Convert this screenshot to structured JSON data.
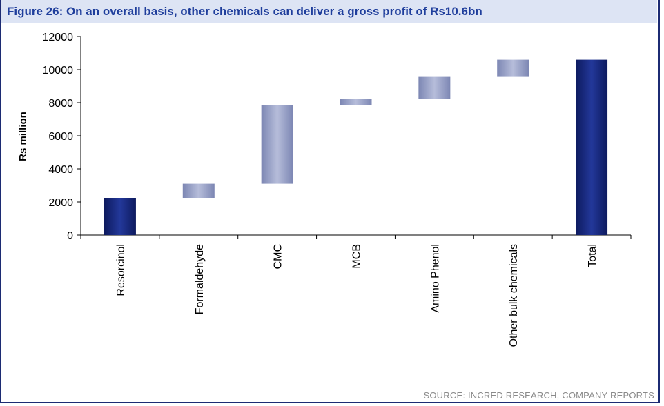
{
  "figure": {
    "title": "Figure 26: On an overall basis, other chemicals can deliver a gross profit of Rs10.6bn",
    "source": "SOURCE: INCRED RESEARCH, COMPANY REPORTS"
  },
  "chart_data": {
    "type": "bar",
    "subtype": "waterfall",
    "title": "",
    "xlabel": "",
    "ylabel": "Rs million",
    "ylim": [
      0,
      12000
    ],
    "yticks": [
      0,
      2000,
      4000,
      6000,
      8000,
      10000,
      12000
    ],
    "grid": false,
    "legend": "none",
    "categories": [
      "Resorcinol",
      "Formaldehyde",
      "CMC",
      "MCB",
      "Amino Phenol",
      "Other bulk chemicals",
      "Total"
    ],
    "base": [
      0,
      2250,
      3100,
      7850,
      8250,
      9600,
      0
    ],
    "values": [
      2250,
      850,
      4750,
      400,
      1350,
      1000,
      10600
    ],
    "colors": {
      "total_bar": "#13247a",
      "step_bar": "#9aa3c8"
    }
  }
}
